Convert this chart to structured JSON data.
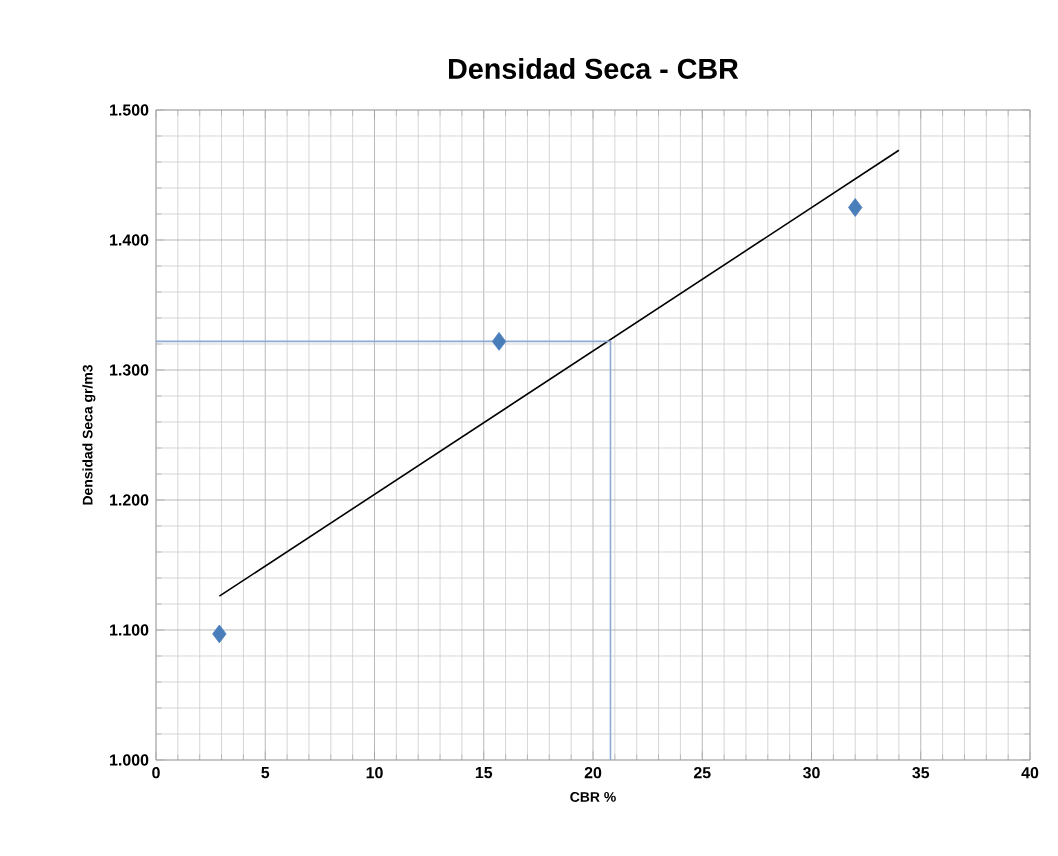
{
  "chart_data": {
    "type": "scatter",
    "title": "Densidad Seca - CBR",
    "xlabel": "CBR %",
    "ylabel": "Densidad Seca gr/m3",
    "xlim": [
      0,
      40
    ],
    "xticks": [
      0,
      5,
      10,
      15,
      20,
      25,
      30,
      35,
      40
    ],
    "ylim": [
      1.0,
      1.5
    ],
    "yticks": [
      {
        "value": 1.0,
        "label": "1.000"
      },
      {
        "value": 1.1,
        "label": "1.100"
      },
      {
        "value": 1.2,
        "label": "1.200"
      },
      {
        "value": 1.3,
        "label": "1.300"
      },
      {
        "value": 1.4,
        "label": "1.400"
      },
      {
        "value": 1.5,
        "label": "1.500"
      }
    ],
    "grid": true,
    "series": [
      {
        "marker": "diamond",
        "color": "#4a7ebb",
        "x": [
          2.9,
          15.7,
          32.0
        ],
        "values": [
          1.097,
          1.322,
          1.425
        ]
      },
      {
        "type": "line",
        "marker": "none",
        "line_style": "solid",
        "color": "#000000",
        "x": [
          2.9,
          34.0
        ],
        "values": [
          1.126,
          1.469
        ]
      },
      {
        "type": "line",
        "marker": "none",
        "line_style": "solid",
        "color": "#8eaad4",
        "x": [
          0,
          20.8,
          20.8
        ],
        "values": [
          1.322,
          1.322,
          1.0
        ]
      }
    ]
  }
}
